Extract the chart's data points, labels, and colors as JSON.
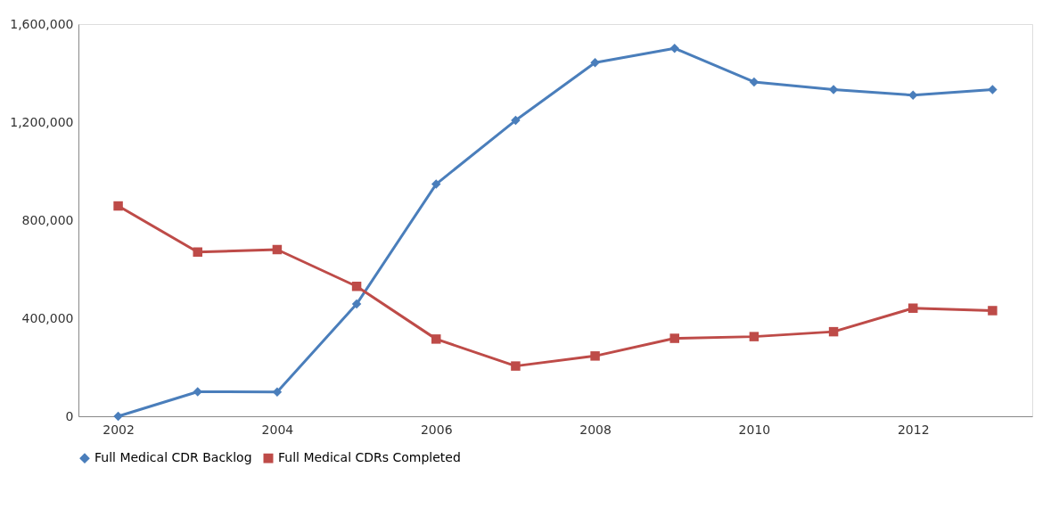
{
  "chart_data": {
    "type": "line",
    "categories": [
      "2002",
      null,
      "2004",
      null,
      "2006",
      null,
      "2008",
      null,
      "2010",
      null,
      "2012",
      null
    ],
    "ylim": [
      0,
      1600000
    ],
    "yticks": [
      {
        "value": 0,
        "label": "0"
      },
      {
        "value": 400000,
        "label": "400,000"
      },
      {
        "value": 800000,
        "label": "800,000"
      },
      {
        "value": 1200000,
        "label": "1,200,000"
      },
      {
        "value": 1600000,
        "label": "1,600,000"
      }
    ],
    "grid": false,
    "legend": "bottom",
    "line_style": "solid",
    "series": [
      {
        "name": "Full Medical CDR Backlog",
        "color": "#4a7ebb",
        "marker": "diamond",
        "values": [
          0,
          100000,
          99000,
          458000,
          947000,
          1207000,
          1443000,
          1501000,
          1364000,
          1333000,
          1310000,
          1333000
        ]
      },
      {
        "name": "Full Medical CDRs Completed",
        "color": "#be4b48",
        "marker": "square",
        "values": [
          858000,
          670000,
          680000,
          530000,
          315000,
          205000,
          246000,
          318000,
          325000,
          345000,
          441000,
          431000
        ]
      }
    ]
  }
}
